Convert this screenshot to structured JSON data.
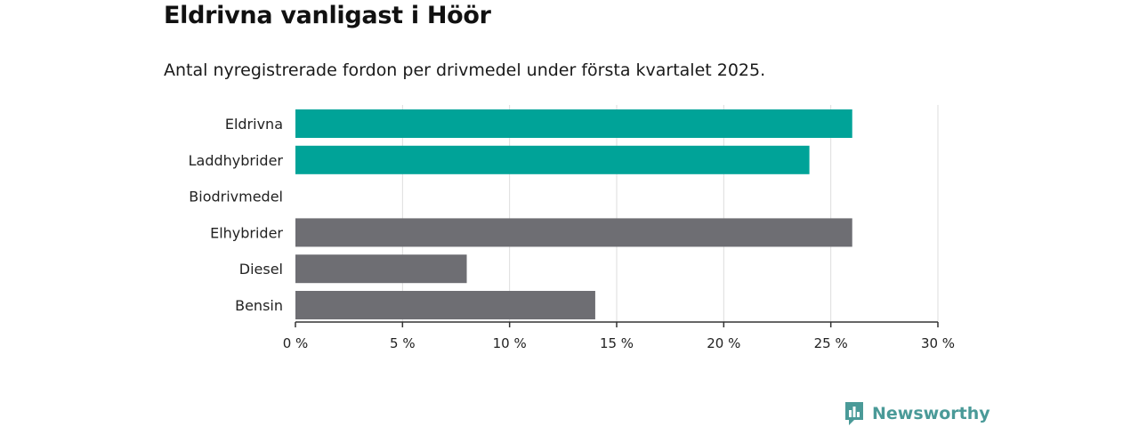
{
  "header": {
    "title": "Eldrivna vanligast i Höör",
    "subtitle": "Antal nyregistrerade fordon per drivmedel under första kvartalet 2025."
  },
  "brand": {
    "name": "Newsworthy",
    "icon": "newsworthy-logo-icon",
    "color": "#4a9a98"
  },
  "colors": {
    "highlight": "#00a398",
    "default": "#6e6e73",
    "grid": "#dddddd",
    "axis": "#333333"
  },
  "chart_data": {
    "type": "bar",
    "orientation": "horizontal",
    "categories": [
      "Eldrivna",
      "Laddhybrider",
      "Biodrivmedel",
      "Elhybrider",
      "Diesel",
      "Bensin"
    ],
    "values": [
      26,
      24,
      0,
      26,
      8,
      14
    ],
    "highlighted": [
      true,
      true,
      true,
      false,
      false,
      false
    ],
    "unit": "%",
    "xlim": [
      0,
      30
    ],
    "xticks": [
      0,
      5,
      10,
      15,
      20,
      25,
      30
    ],
    "xtick_labels": [
      "0 %",
      "5 %",
      "10 %",
      "15 %",
      "20 %",
      "25 %",
      "30 %"
    ],
    "grid": true
  }
}
